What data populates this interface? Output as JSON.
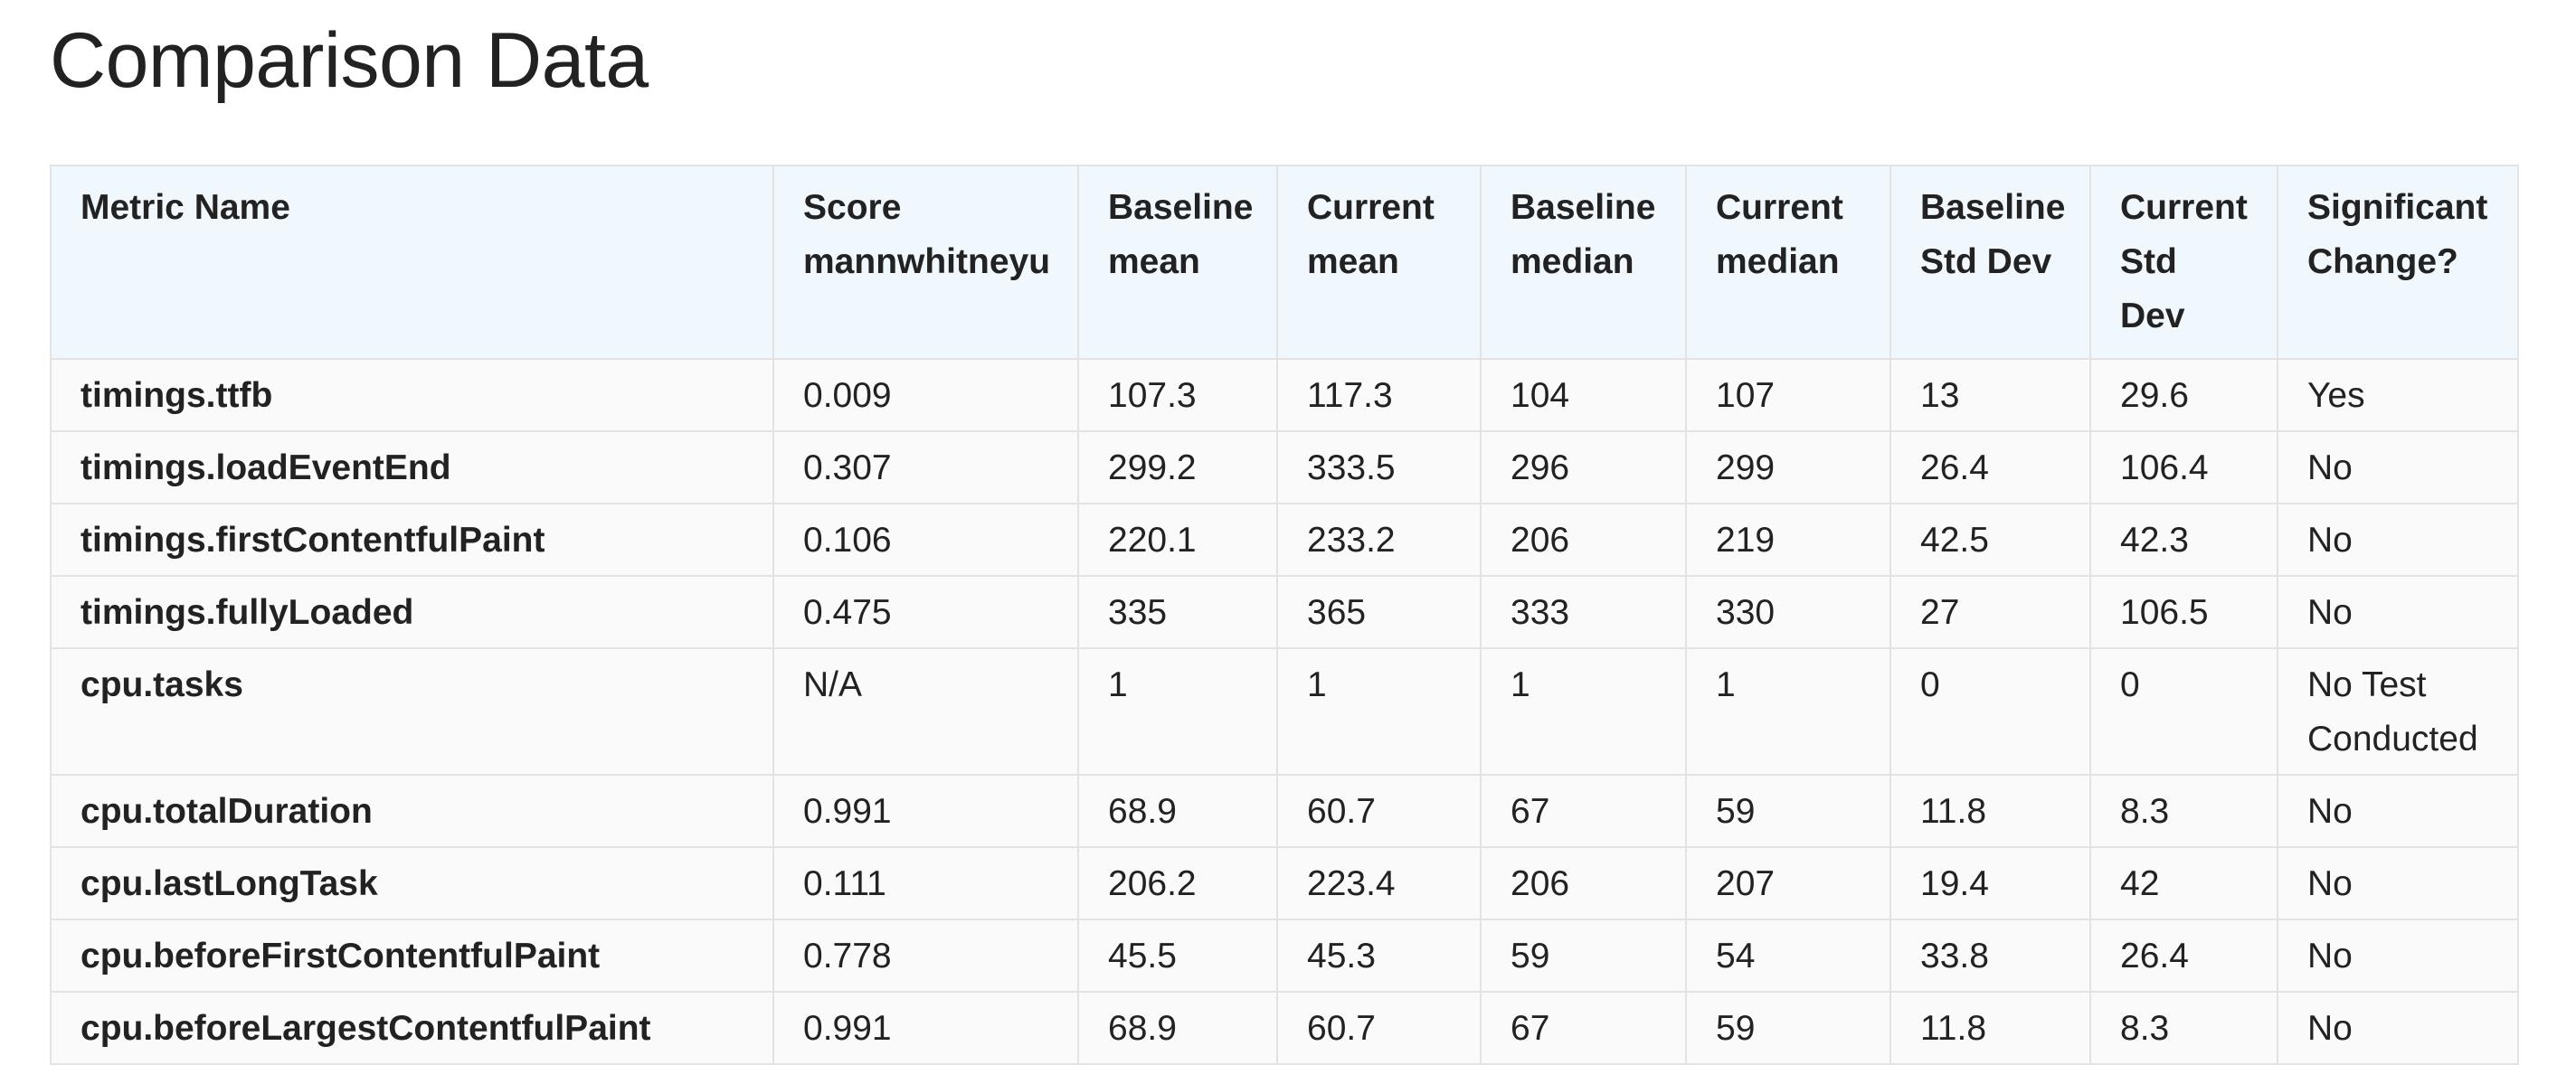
{
  "title": "Comparison Data",
  "table": {
    "headers": [
      "Metric Name",
      "Score mannwhitneyu",
      "Baseline mean",
      "Current mean",
      "Baseline median",
      "Current median",
      "Baseline Std Dev",
      "Current Std Dev",
      "Significant Change?"
    ],
    "rows": [
      [
        "timings.ttfb",
        "0.009",
        "107.3",
        "117.3",
        "104",
        "107",
        "13",
        "29.6",
        "Yes"
      ],
      [
        "timings.loadEventEnd",
        "0.307",
        "299.2",
        "333.5",
        "296",
        "299",
        "26.4",
        "106.4",
        "No"
      ],
      [
        "timings.firstContentfulPaint",
        "0.106",
        "220.1",
        "233.2",
        "206",
        "219",
        "42.5",
        "42.3",
        "No"
      ],
      [
        "timings.fullyLoaded",
        "0.475",
        "335",
        "365",
        "333",
        "330",
        "27",
        "106.5",
        "No"
      ],
      [
        "cpu.tasks",
        "N/A",
        "1",
        "1",
        "1",
        "1",
        "0",
        "0",
        "No Test Conducted"
      ],
      [
        "cpu.totalDuration",
        "0.991",
        "68.9",
        "60.7",
        "67",
        "59",
        "11.8",
        "8.3",
        "No"
      ],
      [
        "cpu.lastLongTask",
        "0.111",
        "206.2",
        "223.4",
        "206",
        "207",
        "19.4",
        "42",
        "No"
      ],
      [
        "cpu.beforeFirstContentfulPaint",
        "0.778",
        "45.5",
        "45.3",
        "59",
        "54",
        "33.8",
        "26.4",
        "No"
      ],
      [
        "cpu.beforeLargestContentfulPaint",
        "0.991",
        "68.9",
        "60.7",
        "67",
        "59",
        "11.8",
        "8.3",
        "No"
      ]
    ]
  }
}
